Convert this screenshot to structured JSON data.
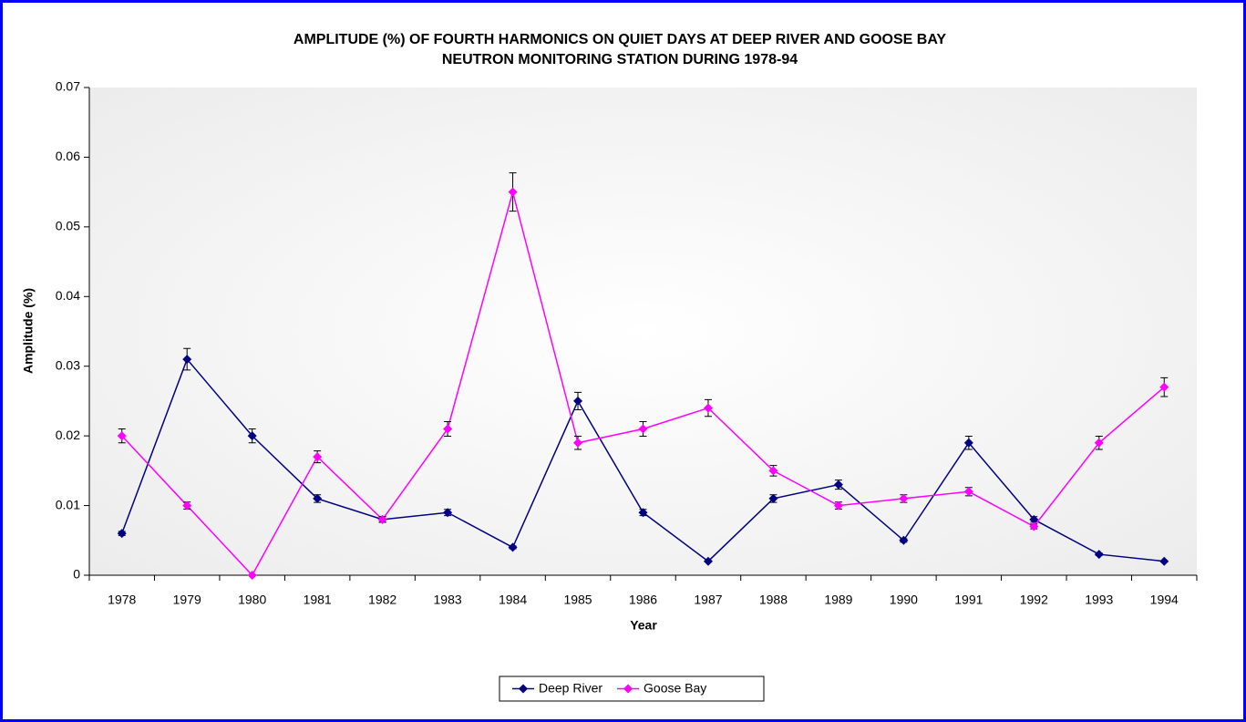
{
  "chart_data": {
    "type": "line",
    "title": [
      "AMPLITUDE (%) OF FOURTH HARMONICS ON QUIET DAYS AT DEEP RIVER AND GOOSE BAY",
      "NEUTRON MONITORING STATION DURING 1978-94"
    ],
    "x_label": "Year",
    "y_label": "Amplitude (%)",
    "categories": [
      "1978",
      "1979",
      "1980",
      "1981",
      "1982",
      "1983",
      "1984",
      "1985",
      "1986",
      "1987",
      "1988",
      "1989",
      "1990",
      "1991",
      "1992",
      "1993",
      "1994"
    ],
    "series": [
      {
        "name": "Deep River",
        "color": "#000080",
        "values": [
          0.006,
          0.031,
          0.02,
          0.011,
          0.008,
          0.009,
          0.004,
          0.025,
          0.009,
          0.002,
          0.011,
          0.013,
          0.005,
          0.019,
          0.008,
          0.003,
          0.002
        ],
        "errors": [
          0.0003,
          0.00155,
          0.001,
          0.00055,
          0.0004,
          0.00045,
          0.0002,
          0.00125,
          0.00045,
          0.0001,
          0.00055,
          0.00065,
          0.00025,
          0.00095,
          0.0004,
          0.00015,
          0.0001
        ]
      },
      {
        "name": "Goose Bay",
        "color": "#ff00ff",
        "values": [
          0.02,
          0.01,
          0.0,
          0.017,
          0.008,
          0.021,
          0.055,
          0.019,
          0.021,
          0.024,
          0.015,
          0.01,
          0.011,
          0.012,
          0.007,
          0.019,
          0.027
        ],
        "errors": [
          0.001,
          0.0005,
          0,
          0.00085,
          0.0004,
          0.00105,
          0.00275,
          0.00095,
          0.00105,
          0.0012,
          0.00075,
          0.0005,
          0.00055,
          0.0006,
          0.00035,
          0.00095,
          0.00135
        ]
      }
    ],
    "ylim": [
      0,
      0.07
    ],
    "yticks": [
      0,
      0.01,
      0.02,
      0.03,
      0.04,
      0.05,
      0.06,
      0.07
    ],
    "grid": false,
    "legend": "bottom"
  }
}
